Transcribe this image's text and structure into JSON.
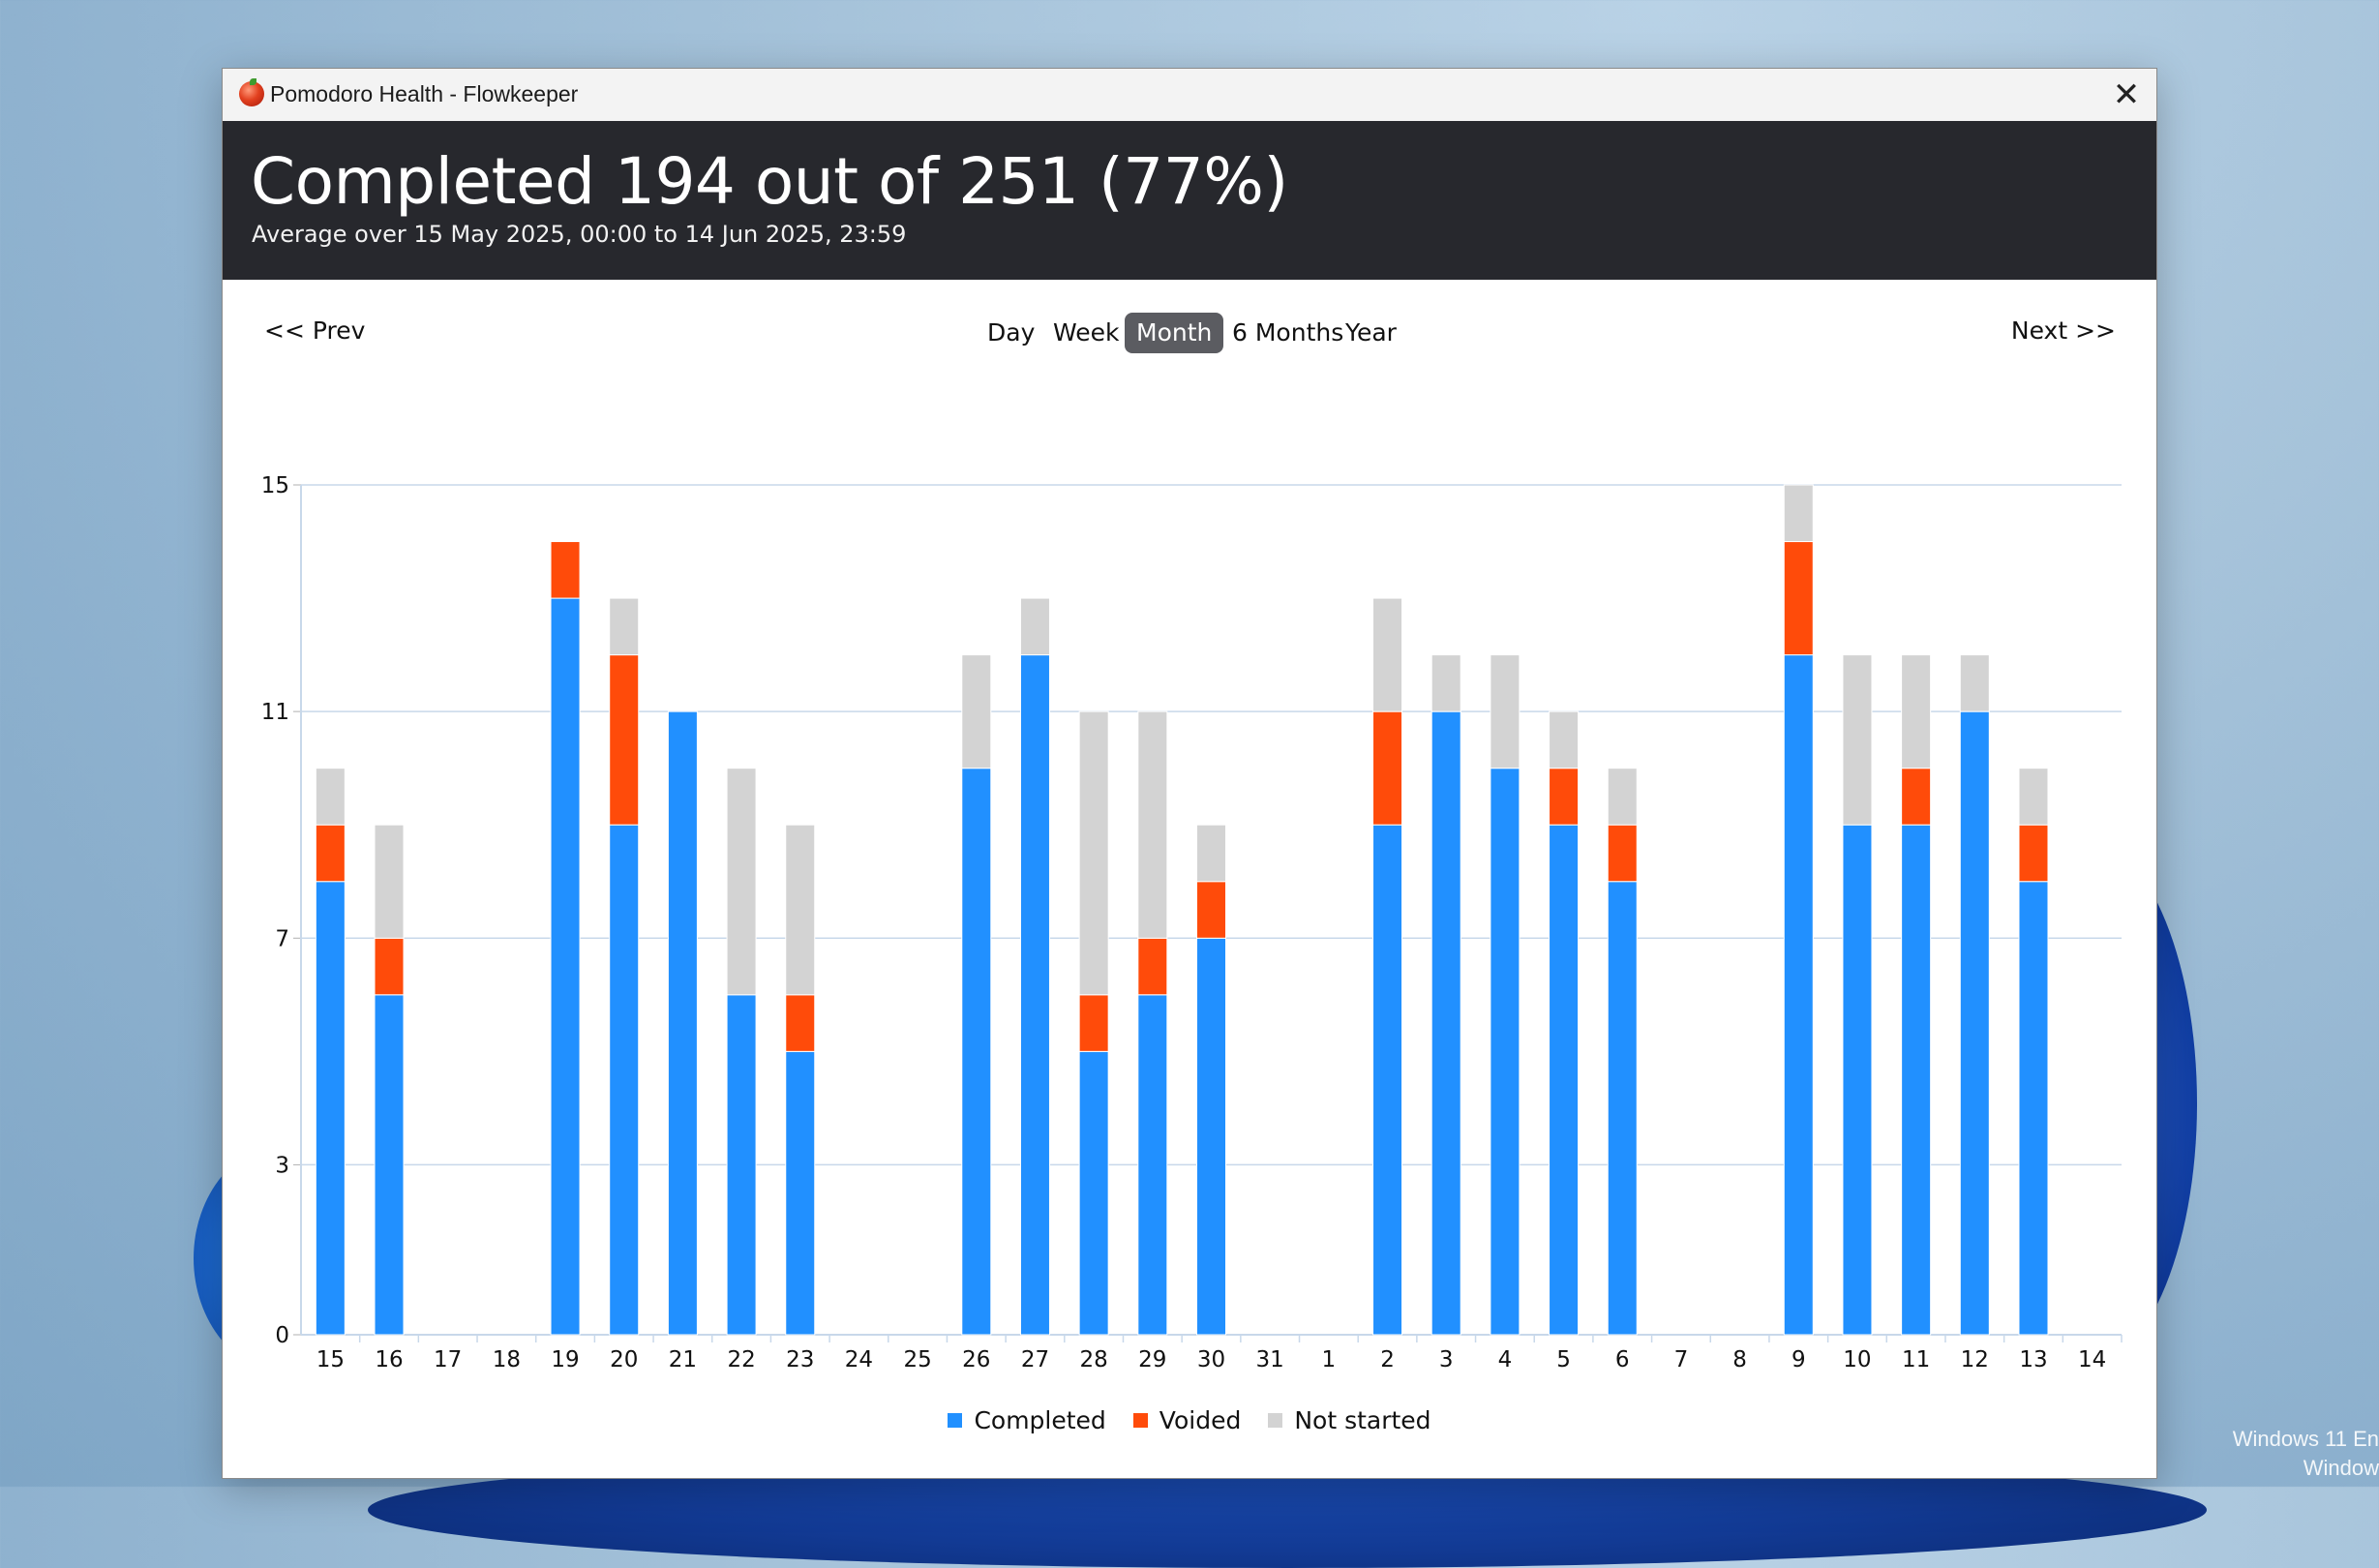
{
  "window": {
    "title": "Pomodoro Health - Flowkeeper",
    "close_glyph": "✕"
  },
  "header": {
    "headline": "Completed 194 out of 251 (77%)",
    "subline": "Average over 15 May 2025, 00:00 to 14 Jun 2025, 23:59"
  },
  "nav": {
    "prev": "<< Prev",
    "next": "Next >>",
    "periods": [
      "Day",
      "Week",
      "Month",
      "6 Months",
      "Year"
    ],
    "active_period": "Month"
  },
  "colors": {
    "completed": "#2190ff",
    "voided": "#ff4b0a",
    "not_started": "#d3d3d3",
    "header_bg": "#27282d",
    "active_tab": "#5b5c61"
  },
  "chart_data": {
    "type": "bar",
    "stacked": true,
    "categories": [
      "15",
      "16",
      "17",
      "18",
      "19",
      "20",
      "21",
      "22",
      "23",
      "24",
      "25",
      "26",
      "27",
      "28",
      "29",
      "30",
      "31",
      "1",
      "2",
      "3",
      "4",
      "5",
      "6",
      "7",
      "8",
      "9",
      "10",
      "11",
      "12",
      "13",
      "14"
    ],
    "series": [
      {
        "name": "Completed",
        "values": [
          8,
          6,
          0,
          0,
          13,
          9,
          11,
          6,
          5,
          0,
          0,
          10,
          12,
          5,
          6,
          7,
          0,
          0,
          9,
          11,
          10,
          9,
          8,
          0,
          0,
          12,
          9,
          9,
          11,
          8,
          0
        ]
      },
      {
        "name": "Voided",
        "values": [
          1,
          1,
          0,
          0,
          1,
          3,
          0,
          0,
          1,
          0,
          0,
          0,
          0,
          1,
          1,
          1,
          0,
          0,
          2,
          0,
          0,
          1,
          1,
          0,
          0,
          2,
          0,
          1,
          0,
          1,
          0
        ]
      },
      {
        "name": "Not started",
        "values": [
          1,
          2,
          0,
          0,
          0,
          1,
          0,
          4,
          3,
          0,
          0,
          2,
          1,
          5,
          4,
          1,
          0,
          0,
          2,
          1,
          2,
          1,
          1,
          0,
          0,
          1,
          3,
          2,
          1,
          1,
          0
        ]
      }
    ],
    "y_ticks": [
      0,
      3,
      7,
      11,
      15
    ],
    "ylim": [
      0,
      15
    ],
    "grid": true,
    "legend_position": "bottom-center"
  },
  "desktop": {
    "watermark_line1": "Windows 11 En",
    "watermark_line2": "Window"
  }
}
